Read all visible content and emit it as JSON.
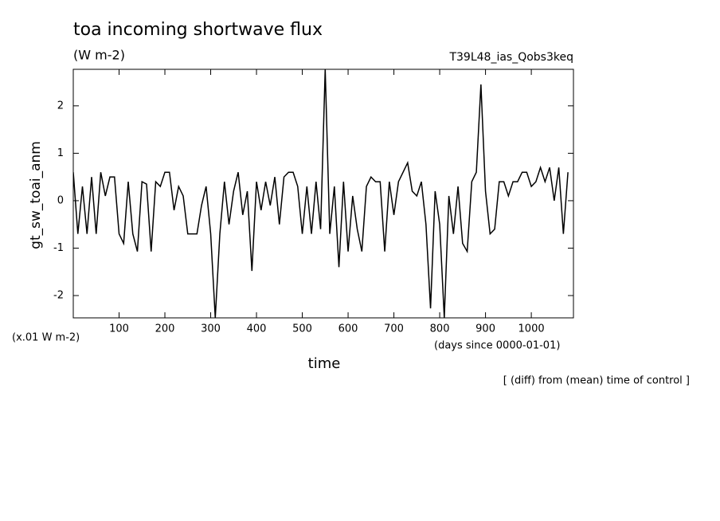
{
  "chart_data": {
    "type": "line",
    "title": "toa incoming shortwave flux",
    "subtitle": "(W m-2)",
    "experiment": "T39L48_ias_Qobs3keq",
    "y_label": "gt_sw_toai_anm",
    "y_units": "(x.01 W m-2)",
    "x_label": "time",
    "x_units": "(days since 0000-01-01)",
    "note": "[ (diff) from (mean) time of control ]",
    "x": [
      0,
      10,
      20,
      30,
      40,
      50,
      60,
      70,
      80,
      90,
      100,
      110,
      120,
      130,
      140,
      150,
      160,
      170,
      180,
      190,
      200,
      210,
      220,
      230,
      240,
      250,
      260,
      270,
      280,
      290,
      300,
      310,
      320,
      330,
      340,
      350,
      360,
      370,
      380,
      390,
      400,
      410,
      420,
      430,
      440,
      450,
      460,
      470,
      480,
      490,
      500,
      510,
      520,
      530,
      540,
      550,
      560,
      570,
      580,
      590,
      600,
      610,
      620,
      630,
      640,
      650,
      660,
      670,
      680,
      690,
      700,
      710,
      720,
      730,
      740,
      750,
      760,
      770,
      780,
      790,
      800,
      810,
      820,
      830,
      840,
      850,
      860,
      870,
      880,
      890,
      900,
      910,
      920,
      930,
      940,
      950,
      960,
      970,
      980,
      990,
      1000,
      1010,
      1020,
      1030,
      1040,
      1050,
      1060,
      1070,
      1080
    ],
    "series": [
      {
        "color": "#000000",
        "values": [
          0.6,
          -0.7,
          0.3,
          -0.7,
          0.5,
          -0.7,
          0.6,
          0.1,
          0.5,
          0.5,
          -0.7,
          -0.9,
          0.4,
          -0.7,
          -1.07,
          0.4,
          0.35,
          -1.07,
          0.4,
          0.3,
          0.6,
          0.6,
          -0.2,
          0.3,
          0.1,
          -0.7,
          -0.7,
          -0.7,
          -0.1,
          0.3,
          -0.7,
          -2.47,
          -0.7,
          0.4,
          -0.5,
          0.2,
          0.6,
          -0.3,
          0.2,
          -1.48,
          0.4,
          -0.2,
          0.4,
          -0.1,
          0.5,
          -0.5,
          0.5,
          0.6,
          0.6,
          0.3,
          -0.7,
          0.3,
          -0.7,
          0.4,
          -0.6,
          2.77,
          -0.7,
          0.3,
          -1.4,
          0.4,
          -1.07,
          0.1,
          -0.6,
          -1.07,
          0.3,
          0.5,
          0.4,
          0.4,
          -1.07,
          0.4,
          -0.3,
          0.4,
          0.6,
          0.8,
          0.2,
          0.1,
          0.4,
          -0.5,
          -2.27,
          0.2,
          -0.5,
          -2.47,
          0.1,
          -0.7,
          0.3,
          -0.9,
          -1.07,
          0.4,
          0.6,
          2.45,
          0.2,
          -0.7,
          -0.6,
          0.4,
          0.4,
          0.1,
          0.4,
          0.4,
          0.6,
          0.6,
          0.3,
          0.4,
          0.7,
          0.4,
          0.7,
          0.0,
          0.7,
          -0.7,
          0.6
        ]
      }
    ],
    "xlim": [
      0,
      1092
    ],
    "ylim": [
      -2.47,
      2.77
    ],
    "xticks": [
      100,
      200,
      300,
      400,
      500,
      600,
      700,
      800,
      900,
      1000
    ],
    "yticks": [
      -2,
      -1,
      0,
      1,
      2
    ]
  }
}
